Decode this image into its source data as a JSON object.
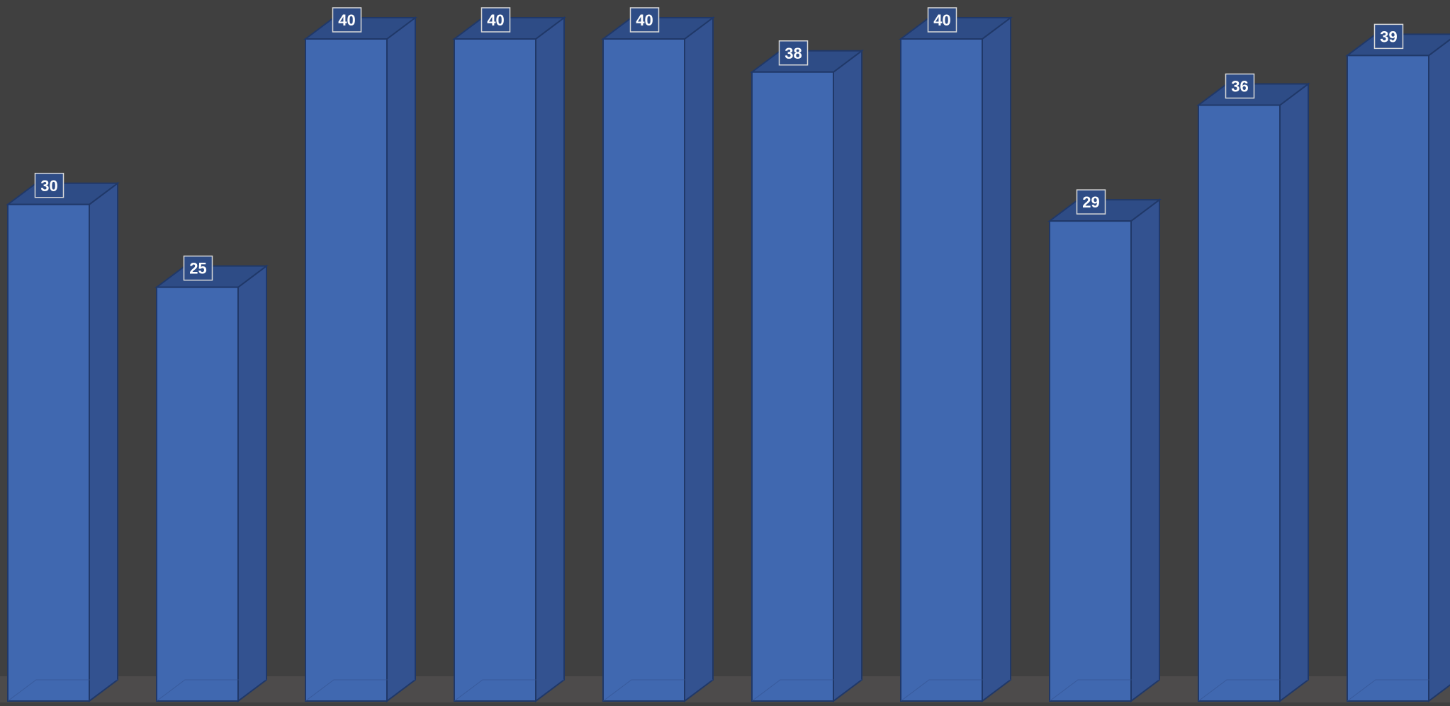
{
  "chart_data": {
    "type": "bar",
    "style": "3d-column",
    "values": [
      30,
      25,
      40,
      40,
      40,
      38,
      40,
      29,
      36,
      39
    ],
    "data_labels": [
      "30",
      "25",
      "40",
      "40",
      "40",
      "38",
      "40",
      "29",
      "36",
      "39"
    ],
    "ylim": [
      0,
      40
    ],
    "grid": false,
    "legend": "none"
  },
  "colors": {
    "background": "#404040",
    "floor": "#4d4b4b",
    "bar_front": "#4068b0",
    "bar_side": "#335290",
    "bar_top": "#2e4c86",
    "bar_edge": "#203868",
    "label_box_border": "#d9d9d9",
    "label_text": "#ffffff"
  }
}
